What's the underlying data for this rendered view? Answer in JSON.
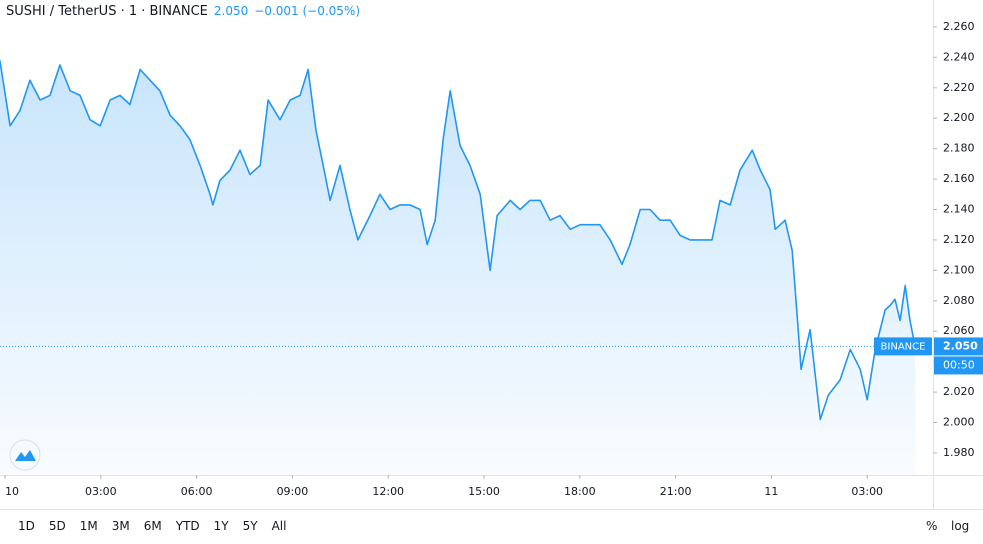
{
  "header": {
    "title": "SUSHI / TetherUS · 1 · BINANCE",
    "change": "−0.001 (−0.05%)"
  },
  "chart_data": {
    "type": "line",
    "color": "#2196f3",
    "log_scale": false,
    "grid": false,
    "x": [
      -0.16,
      0.16,
      0.47,
      0.78,
      1.1,
      1.41,
      1.72,
      2.04,
      2.35,
      2.66,
      2.98,
      3.29,
      3.6,
      3.91,
      4.23,
      4.54,
      4.85,
      5.17,
      5.48,
      5.79,
      6.11,
      6.42,
      6.51,
      6.73,
      7.05,
      7.36,
      7.67,
      7.99,
      8.24,
      8.61,
      8.93,
      9.24,
      9.49,
      9.74,
      10.02,
      10.18,
      10.49,
      10.8,
      11.05,
      11.43,
      11.74,
      12.06,
      12.37,
      12.68,
      13.0,
      13.22,
      13.47,
      13.72,
      13.94,
      14.25,
      14.56,
      14.88,
      15.19,
      15.41,
      15.82,
      16.13,
      16.44,
      16.76,
      17.07,
      17.38,
      17.7,
      18.01,
      18.32,
      18.63,
      18.95,
      19.32,
      19.57,
      19.89,
      20.2,
      20.51,
      20.83,
      21.14,
      21.45,
      21.77,
      22.14,
      22.39,
      22.71,
      23.02,
      23.4,
      23.65,
      23.96,
      24.12,
      24.43,
      24.65,
      24.84,
      24.93,
      25.21,
      25.53,
      25.78,
      26.15,
      26.47,
      26.78,
      27.0,
      27.25,
      27.56,
      27.72,
      27.87,
      28.03,
      28.19,
      28.34,
      28.5
    ],
    "values": [
      2.238,
      2.195,
      2.205,
      2.225,
      2.212,
      2.215,
      2.235,
      2.218,
      2.215,
      2.199,
      2.195,
      2.212,
      2.215,
      2.209,
      2.232,
      2.225,
      2.218,
      2.202,
      2.195,
      2.186,
      2.169,
      2.15,
      2.143,
      2.159,
      2.166,
      2.179,
      2.163,
      2.169,
      2.212,
      2.199,
      2.212,
      2.215,
      2.232,
      2.192,
      2.163,
      2.146,
      2.169,
      2.14,
      2.12,
      2.136,
      2.15,
      2.14,
      2.143,
      2.143,
      2.14,
      2.117,
      2.133,
      2.186,
      2.218,
      2.182,
      2.169,
      2.15,
      2.1,
      2.136,
      2.146,
      2.14,
      2.146,
      2.146,
      2.133,
      2.136,
      2.127,
      2.13,
      2.13,
      2.13,
      2.12,
      2.104,
      2.117,
      2.14,
      2.14,
      2.133,
      2.133,
      2.123,
      2.12,
      2.12,
      2.12,
      2.146,
      2.143,
      2.166,
      2.179,
      2.166,
      2.153,
      2.127,
      2.133,
      2.113,
      2.061,
      2.035,
      2.061,
      2.002,
      2.018,
      2.028,
      2.048,
      2.035,
      2.015,
      2.048,
      2.074,
      2.077,
      2.081,
      2.067,
      2.09,
      2.067,
      2.05
    ],
    "xlim": [
      -0.157,
      29.06
    ],
    "xticks": [
      {
        "value": 0,
        "label": "10"
      },
      {
        "value": 3,
        "label": "03:00"
      },
      {
        "value": 6,
        "label": "06:00"
      },
      {
        "value": 9,
        "label": "09:00"
      },
      {
        "value": 12,
        "label": "12:00"
      },
      {
        "value": 15,
        "label": "15:00"
      },
      {
        "value": 18,
        "label": "18:00"
      },
      {
        "value": 21,
        "label": "21:00"
      },
      {
        "value": 24,
        "label": "11"
      },
      {
        "value": 27,
        "label": "03:00"
      }
    ],
    "ylim": [
      1.9655,
      2.2777
    ],
    "yticks": [
      {
        "value": 1.98,
        "label": "1.980"
      },
      {
        "value": 2.0,
        "label": "2.000"
      },
      {
        "value": 2.02,
        "label": "2.020"
      },
      {
        "value": 2.04,
        "label": "2.040"
      },
      {
        "value": 2.06,
        "label": "2.060"
      },
      {
        "value": 2.08,
        "label": "2.080"
      },
      {
        "value": 2.1,
        "label": "2.100"
      },
      {
        "value": 2.12,
        "label": "2.120"
      },
      {
        "value": 2.14,
        "label": "2.140"
      },
      {
        "value": 2.16,
        "label": "2.160"
      },
      {
        "value": 2.18,
        "label": "2.180"
      },
      {
        "value": 2.2,
        "label": "2.200"
      },
      {
        "value": 2.22,
        "label": "2.220"
      },
      {
        "value": 2.24,
        "label": "2.240"
      },
      {
        "value": 2.26,
        "label": "2.260"
      }
    ],
    "last": {
      "value": 2.05,
      "label": "2.050",
      "exchange": "BINANCE",
      "countdown": "00:50"
    }
  },
  "toolbar": {
    "ranges": [
      "1D",
      "5D",
      "1M",
      "3M",
      "6M",
      "YTD",
      "1Y",
      "5Y",
      "All"
    ],
    "percent": "%",
    "log": "log"
  }
}
